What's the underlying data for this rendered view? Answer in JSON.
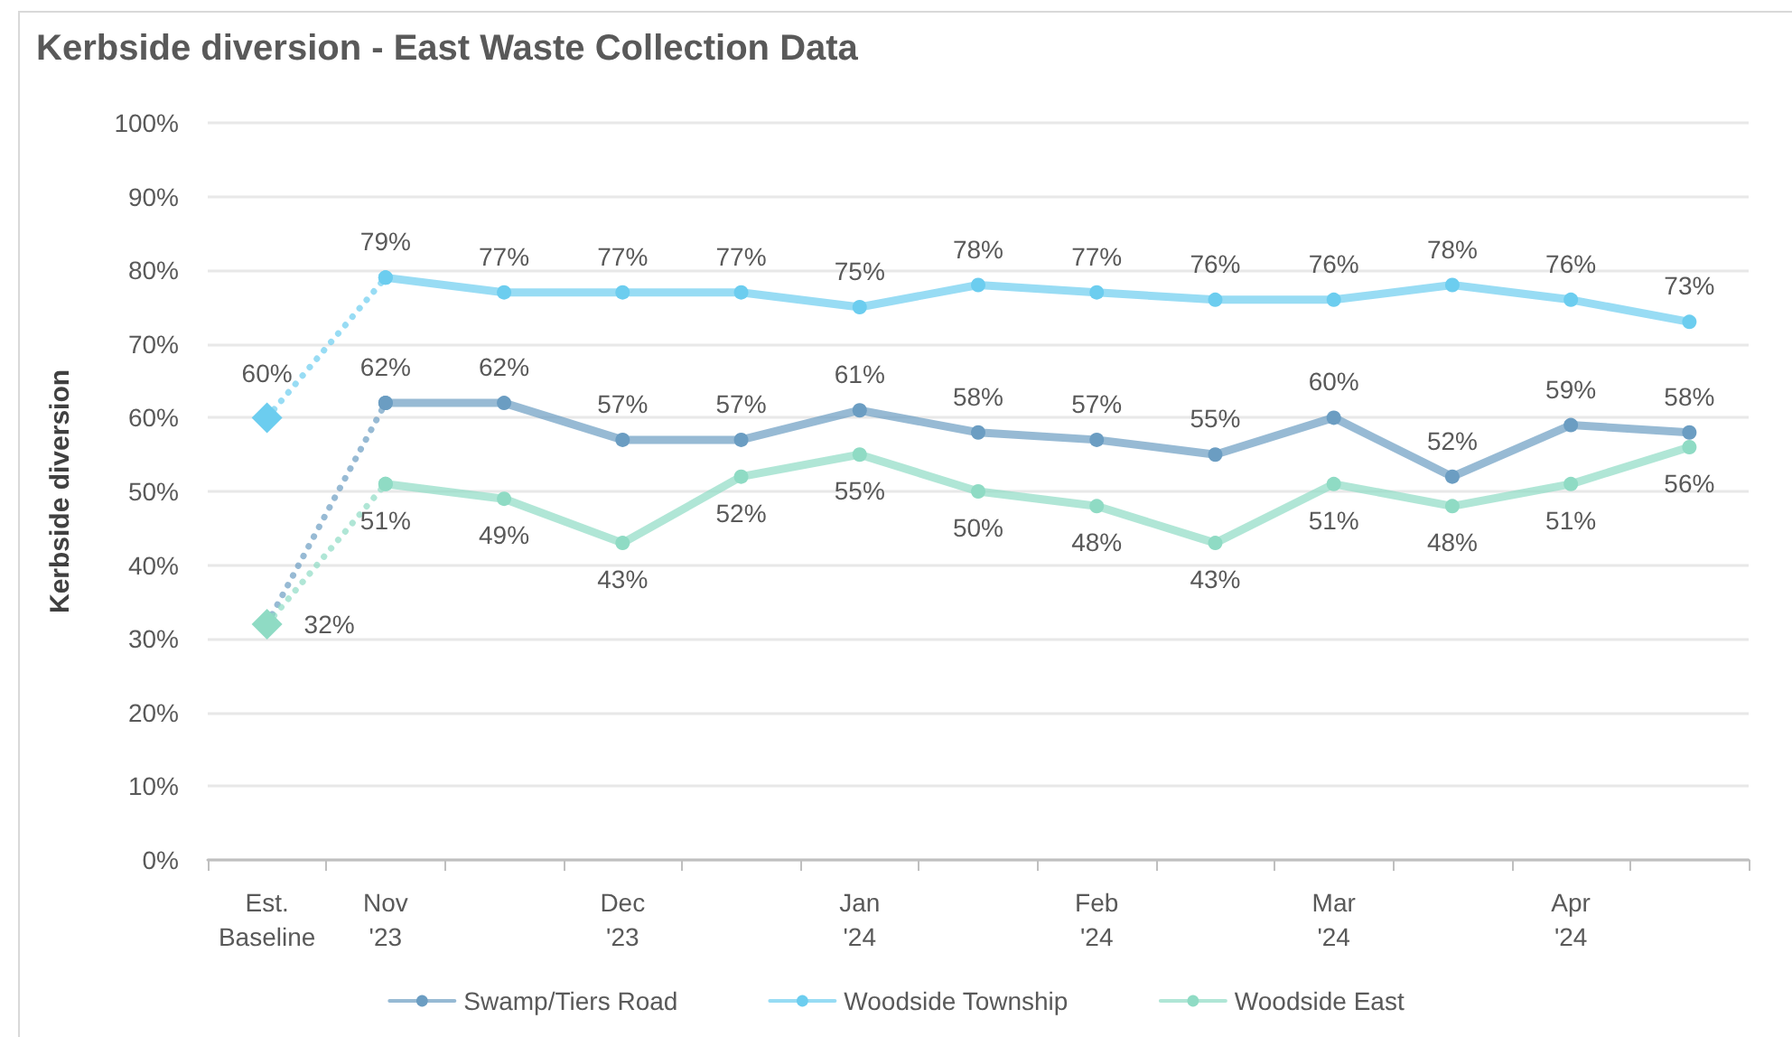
{
  "chart_data": {
    "type": "line",
    "title": "Kerbside diversion - East Waste Collection Data",
    "ylabel": "Kerbside diversion",
    "categories": [
      "Est. Baseline",
      "Nov '23",
      null,
      "Dec '23",
      null,
      "Jan '24",
      null,
      "Feb '24",
      null,
      "Mar '24",
      null,
      "Apr '24",
      null
    ],
    "ylim": [
      0,
      100
    ],
    "yticks": [
      {
        "value": 0,
        "label": "0%"
      },
      {
        "value": 10,
        "label": "10%"
      },
      {
        "value": 20,
        "label": "20%"
      },
      {
        "value": 30,
        "label": "30%"
      },
      {
        "value": 40,
        "label": "40%"
      },
      {
        "value": 50,
        "label": "50%"
      },
      {
        "value": 60,
        "label": "60%"
      },
      {
        "value": 70,
        "label": "70%"
      },
      {
        "value": 80,
        "label": "80%"
      },
      {
        "value": 90,
        "label": "90%"
      },
      {
        "value": 100,
        "label": "100%"
      }
    ],
    "grid": "y",
    "legend": "bottom",
    "marker": "circle",
    "line_style": "solid",
    "series": [
      {
        "name": "Swamp/Tiers Road",
        "color": "#6b9dc2",
        "values": [
          null,
          62,
          62,
          57,
          57,
          61,
          58,
          57,
          55,
          60,
          52,
          59,
          58
        ],
        "value_labels": [
          null,
          "62%",
          "62%",
          "57%",
          "57%",
          "61%",
          "58%",
          "57%",
          "55%",
          "60%",
          "52%",
          "59%",
          "58%"
        ]
      },
      {
        "name": "Woodside Township",
        "color": "#6ccdef",
        "values": [
          null,
          79,
          77,
          77,
          77,
          75,
          78,
          77,
          76,
          76,
          78,
          76,
          73
        ],
        "value_labels": [
          null,
          "79%",
          "77%",
          "77%",
          "77%",
          "75%",
          "78%",
          "77%",
          "76%",
          "76%",
          "78%",
          "76%",
          "73%"
        ]
      },
      {
        "name": "Woodside East",
        "color": "#8fdbc4",
        "values": [
          null,
          51,
          49,
          43,
          52,
          55,
          50,
          48,
          43,
          51,
          48,
          51,
          56
        ],
        "value_labels": [
          null,
          "51%",
          "49%",
          "43%",
          "52%",
          "55%",
          "50%",
          "48%",
          "43%",
          "51%",
          "48%",
          "51%",
          "56%"
        ]
      },
      {
        "color": "#6b9dc2",
        "line_style": "dotted",
        "values": [
          32,
          62,
          null,
          null,
          null,
          null,
          null,
          null,
          null,
          null,
          null,
          null,
          null
        ]
      },
      {
        "color": "#6ccdef",
        "line_style": "dotted",
        "values": [
          60,
          79,
          null,
          null,
          null,
          null,
          null,
          null,
          null,
          null,
          null,
          null,
          null
        ]
      },
      {
        "color": "#8fdbc4",
        "line_style": "dotted",
        "values": [
          32,
          51,
          null,
          null,
          null,
          null,
          null,
          null,
          null,
          null,
          null,
          null,
          null
        ]
      },
      {
        "type": "scatter",
        "color": "#6ccdef",
        "marker": "diamond",
        "values": [
          60,
          null,
          null,
          null,
          null,
          null,
          null,
          null,
          null,
          null,
          null,
          null,
          null
        ],
        "value_labels": [
          "60%",
          null,
          null,
          null,
          null,
          null,
          null,
          null,
          null,
          null,
          null,
          null,
          null
        ]
      },
      {
        "type": "scatter",
        "color": "#8fdbc4",
        "marker": "diamond",
        "values": [
          32,
          null,
          null,
          null,
          null,
          null,
          null,
          null,
          null,
          null,
          null,
          null,
          null
        ],
        "value_labels": [
          "32%",
          null,
          null,
          null,
          null,
          null,
          null,
          null,
          null,
          null,
          null,
          null,
          null
        ]
      }
    ]
  }
}
